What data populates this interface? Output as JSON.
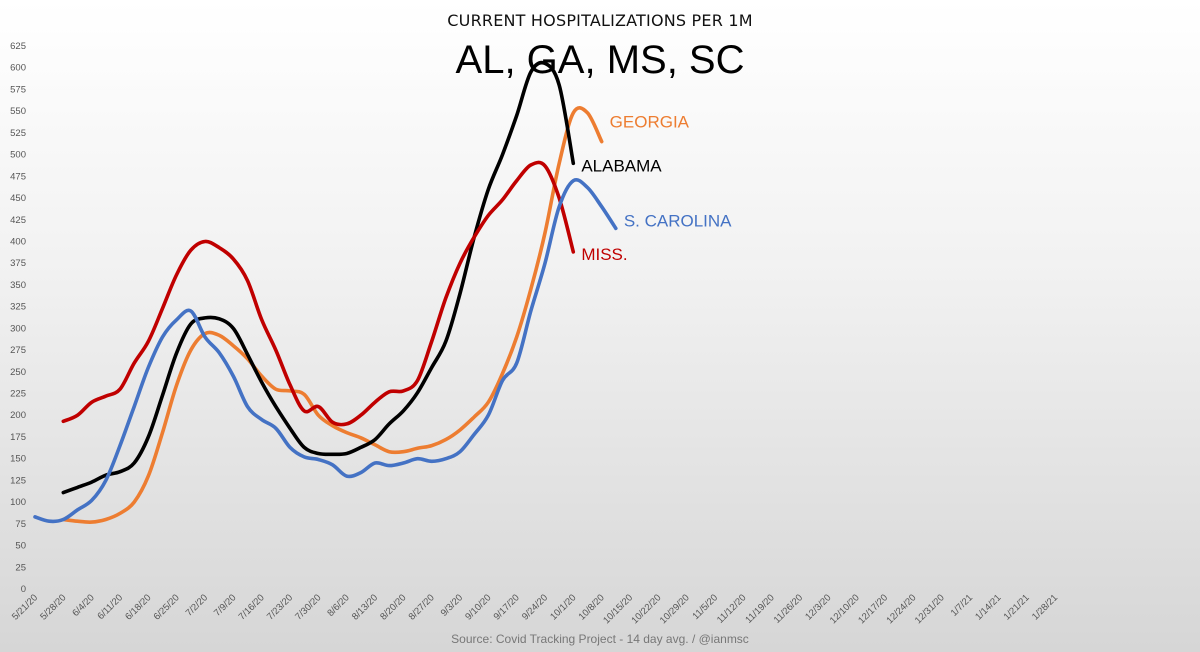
{
  "chart_data": {
    "type": "line",
    "subtitle": "CURRENT HOSPITALIZATIONS PER 1M",
    "title": "AL, GA, MS, SC",
    "source": "Source: Covid Tracking Project - 14 day avg. / @ianmsc",
    "ylim": [
      0,
      625
    ],
    "yticks": [
      0,
      25,
      50,
      75,
      100,
      125,
      150,
      175,
      200,
      225,
      250,
      275,
      300,
      325,
      350,
      375,
      400,
      425,
      450,
      475,
      500,
      525,
      550,
      575,
      600,
      625
    ],
    "x_tick_labels": [
      "5/21/20",
      "5/28/20",
      "6/4/20",
      "6/11/20",
      "6/18/20",
      "6/25/20",
      "7/2/20",
      "7/9/20",
      "7/16/20",
      "7/23/20",
      "7/30/20",
      "8/6/20",
      "8/13/20",
      "8/20/20",
      "8/27/20",
      "9/3/20",
      "9/10/20",
      "9/17/20",
      "9/24/20",
      "10/1/20",
      "10/8/20",
      "10/15/20",
      "10/22/20",
      "10/29/20",
      "11/5/20",
      "11/12/20",
      "11/19/20",
      "11/26/20",
      "12/3/20",
      "12/10/20",
      "12/17/20",
      "12/24/20",
      "12/31/20",
      "1/7/21",
      "1/14/21",
      "1/21/21",
      "1/28/21"
    ],
    "grid": false,
    "series": [
      {
        "name": "GEORGIA",
        "color": "#ED7D31",
        "start_index": 2,
        "values": [
          80,
          78,
          77,
          80,
          87,
          100,
          130,
          180,
          235,
          275,
          294,
          292,
          280,
          265,
          245,
          230,
          228,
          224,
          200,
          188,
          180,
          174,
          166,
          158,
          158,
          162,
          165,
          172,
          183,
          198,
          215,
          248,
          290,
          345,
          410,
          490,
          548,
          548,
          515
        ]
      },
      {
        "name": "ALABAMA",
        "color": "#000000",
        "start_index": 2,
        "values": [
          111,
          117,
          123,
          131,
          135,
          145,
          175,
          223,
          272,
          305,
          312,
          311,
          300,
          270,
          238,
          210,
          185,
          163,
          156,
          155,
          156,
          163,
          172,
          190,
          205,
          226,
          255,
          285,
          340,
          405,
          460,
          500,
          545,
          595,
          605,
          580,
          490
        ]
      },
      {
        "name": "MISS.",
        "color": "#C00000",
        "start_index": 2,
        "values": [
          193,
          200,
          215,
          222,
          230,
          260,
          285,
          323,
          362,
          390,
          400,
          393,
          380,
          355,
          310,
          275,
          235,
          205,
          210,
          192,
          190,
          200,
          215,
          227,
          228,
          240,
          285,
          335,
          375,
          405,
          430,
          448,
          470,
          488,
          487,
          450,
          388
        ]
      },
      {
        "name": "S. CAROLINA",
        "color": "#4472C4",
        "start_index": 0,
        "values": [
          83,
          78,
          80,
          91,
          102,
          125,
          165,
          210,
          255,
          290,
          310,
          320,
          290,
          272,
          245,
          210,
          195,
          185,
          163,
          152,
          149,
          143,
          130,
          134,
          145,
          142,
          145,
          150,
          147,
          150,
          158,
          178,
          200,
          240,
          260,
          320,
          375,
          440,
          470,
          462,
          440,
          415
        ]
      }
    ]
  }
}
